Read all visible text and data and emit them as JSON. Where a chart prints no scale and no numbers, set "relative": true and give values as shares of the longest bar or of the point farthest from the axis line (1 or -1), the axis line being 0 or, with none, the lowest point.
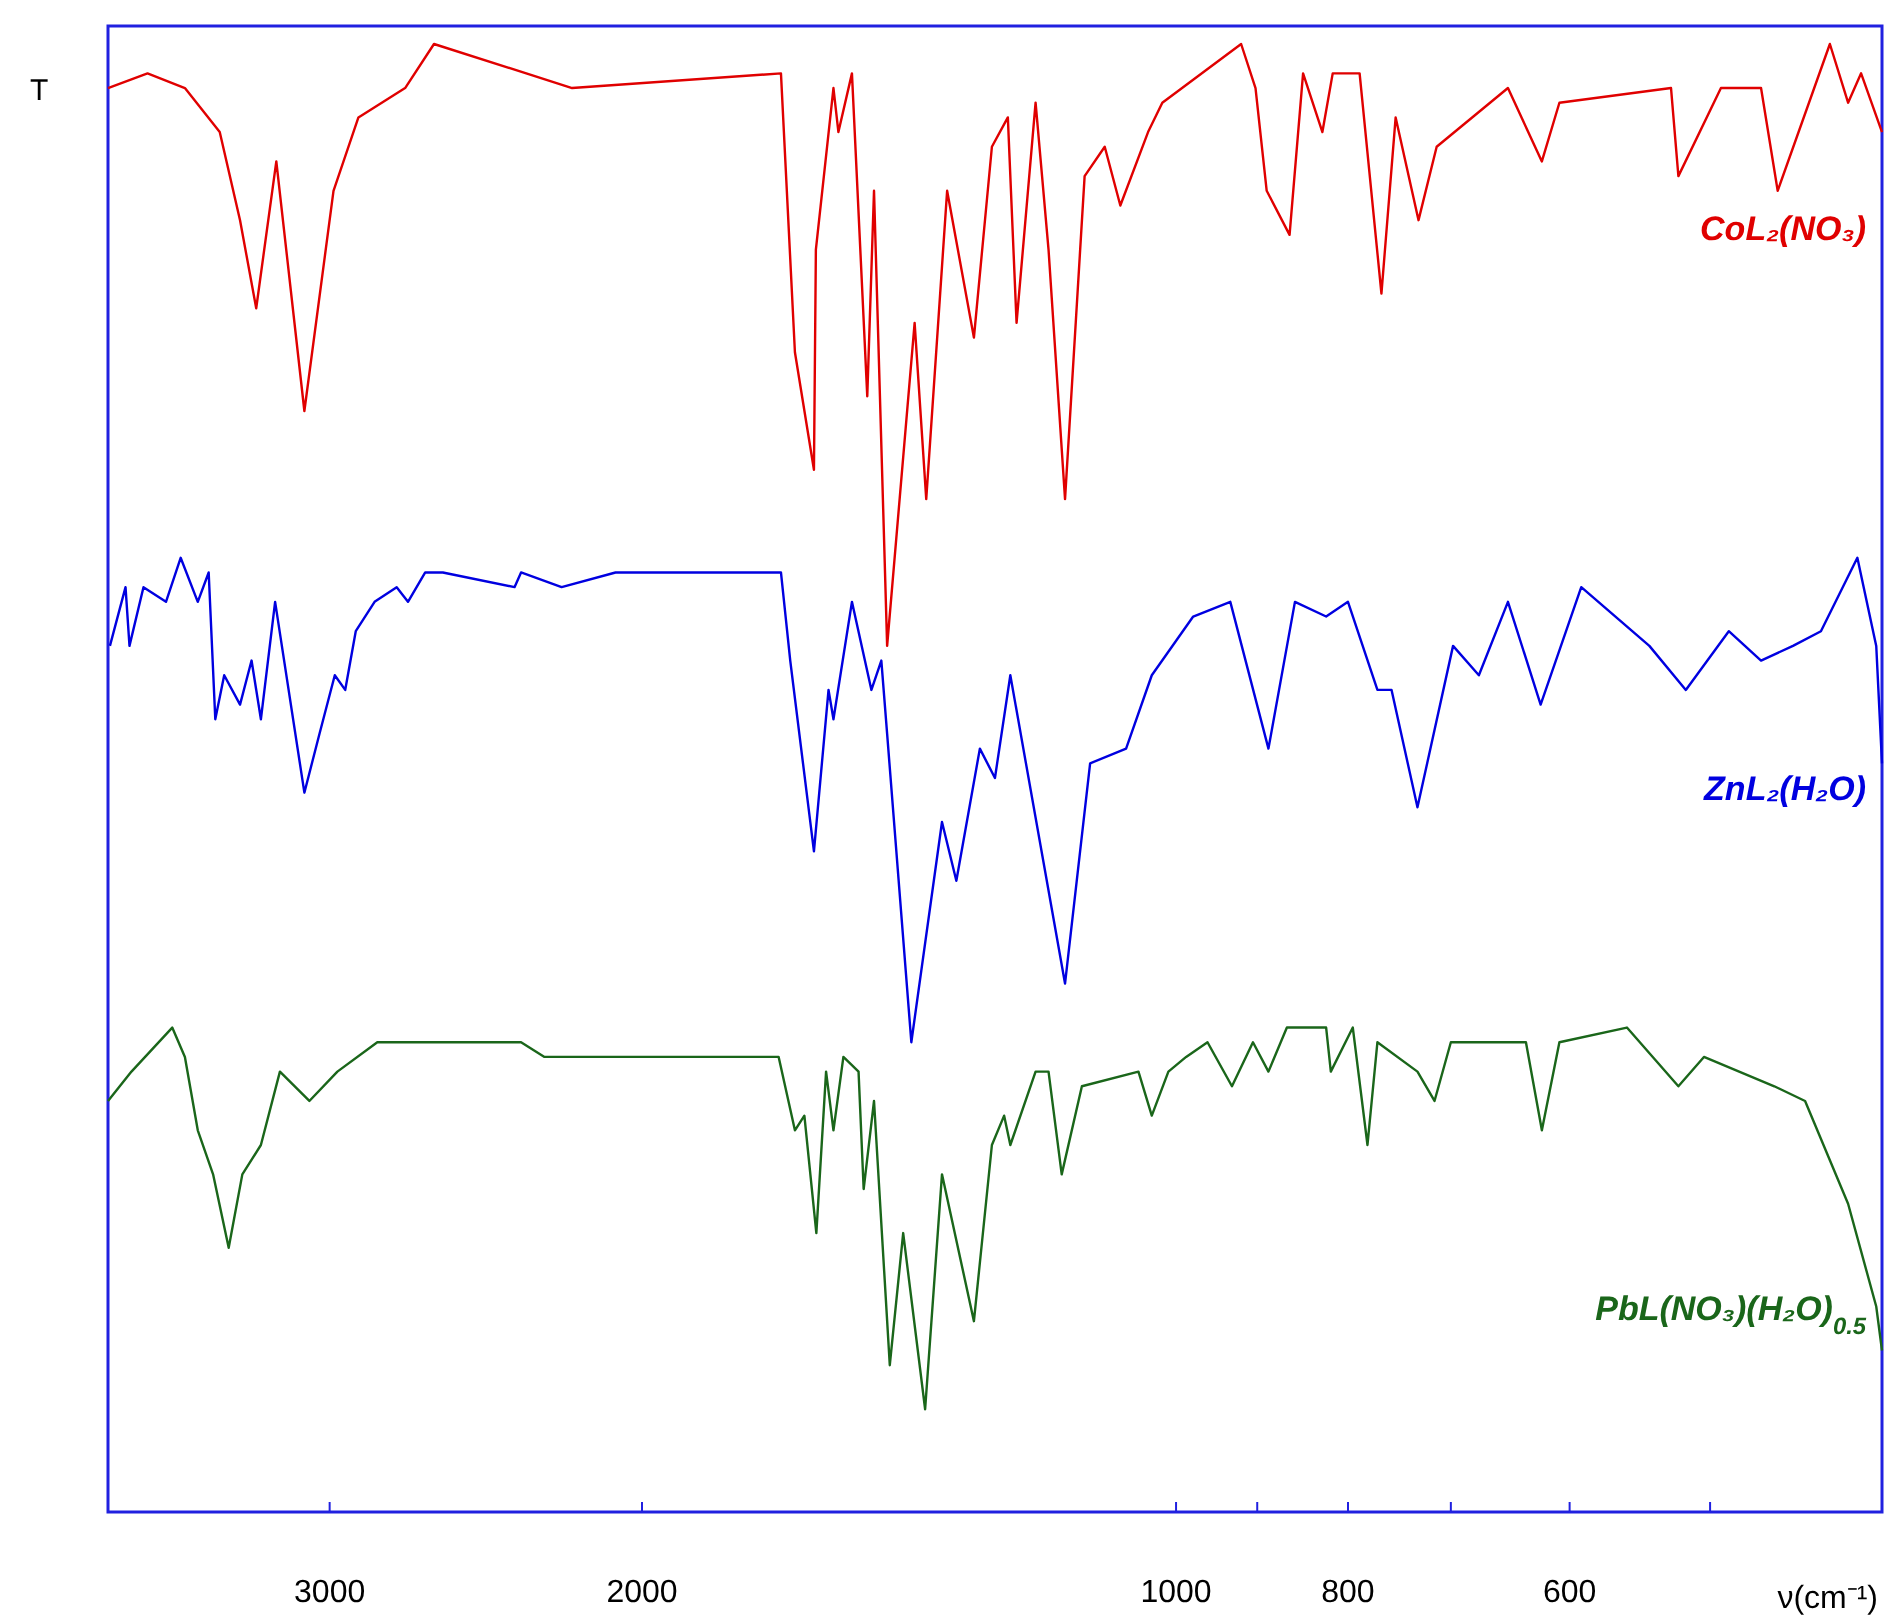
{
  "chart_data": {
    "type": "line",
    "relative": true,
    "log": "x",
    "xlabel": "ν(cm⁻¹)",
    "ylabel": "T",
    "xlim": [
      4000,
      400
    ],
    "xticks": [
      3000,
      2000,
      1000,
      {
        "value": 900,
        "label": null
      },
      800,
      {
        "value": 700,
        "label": null
      },
      600,
      {
        "value": 500,
        "label": null
      }
    ],
    "series": [
      {
        "name": "CoL₂(NO₃)",
        "color": "#e00000",
        "x": [
          4000,
          3800,
          3620,
          3460,
          3370,
          3300,
          3215,
          3100,
          2985,
          2890,
          2720,
          2620,
          2190,
          1670,
          1640,
          1600,
          1596,
          1560,
          1550,
          1523,
          1493,
          1480,
          1455,
          1404,
          1383,
          1346,
          1300,
          1270,
          1244,
          1230,
          1200,
          1180,
          1155,
          1126,
          1097,
          1075,
          1037,
          1018,
          919,
          902,
          889,
          863,
          848,
          827,
          816,
          788,
          766,
          752,
          730,
          713,
          650,
          622,
          608,
          526,
          521,
          493,
          468,
          458,
          428,
          418,
          411,
          400
        ],
        "values": [
          0.97,
          0.98,
          0.97,
          0.94,
          0.88,
          0.82,
          0.92,
          0.75,
          0.9,
          0.95,
          0.97,
          1,
          0.97,
          0.98,
          0.79,
          0.71,
          0.86,
          0.97,
          0.94,
          0.98,
          0.76,
          0.9,
          0.59,
          0.81,
          0.69,
          0.9,
          0.8,
          0.93,
          0.95,
          0.81,
          0.96,
          0.86,
          0.69,
          0.91,
          0.93,
          0.89,
          0.94,
          0.96,
          1,
          0.97,
          0.9,
          0.87,
          0.98,
          0.94,
          0.98,
          0.98,
          0.83,
          0.95,
          0.88,
          0.93,
          0.97,
          0.92,
          0.96,
          0.97,
          0.91,
          0.97,
          0.97,
          0.9,
          1,
          0.96,
          0.98,
          0.94
        ]
      },
      {
        "name": "ZnL₂(H₂O)",
        "color": "#0000e0",
        "x": [
          3990,
          3910,
          3890,
          3820,
          3710,
          3640,
          3560,
          3510,
          3480,
          3440,
          3370,
          3320,
          3280,
          3220,
          3100,
          3040,
          2980,
          2940,
          2900,
          2830,
          2750,
          2710,
          2650,
          2590,
          2360,
          2340,
          2220,
          2070,
          1770,
          1670,
          1650,
          1600,
          1570,
          1560,
          1523,
          1485,
          1466,
          1455,
          1410,
          1355,
          1330,
          1290,
          1265,
          1240,
          1155,
          1118,
          1067,
          1032,
          978,
          932,
          887,
          857,
          823,
          800,
          770,
          756,
          731,
          698,
          675,
          650,
          623,
          591,
          541,
          516,
          488,
          468,
          449,
          433,
          413,
          403,
          400
        ],
        "values": [
          0.59,
          0.63,
          0.59,
          0.63,
          0.62,
          0.65,
          0.62,
          0.64,
          0.54,
          0.57,
          0.55,
          0.58,
          0.54,
          0.62,
          0.49,
          0.53,
          0.57,
          0.56,
          0.6,
          0.62,
          0.63,
          0.62,
          0.64,
          0.64,
          0.63,
          0.64,
          0.63,
          0.64,
          0.64,
          0.64,
          0.58,
          0.45,
          0.56,
          0.54,
          0.62,
          0.56,
          0.58,
          0.53,
          0.32,
          0.47,
          0.43,
          0.52,
          0.5,
          0.57,
          0.36,
          0.51,
          0.52,
          0.57,
          0.61,
          0.62,
          0.52,
          0.62,
          0.61,
          0.62,
          0.56,
          0.56,
          0.48,
          0.59,
          0.57,
          0.62,
          0.55,
          0.63,
          0.59,
          0.56,
          0.6,
          0.58,
          0.59,
          0.6,
          0.65,
          0.59,
          0.51
        ]
      },
      {
        "name": "PbL(NO₃)(H₂O)$_{0.5}$",
        "color": "#1a661a",
        "x": [
          4000,
          3880,
          3680,
          3620,
          3560,
          3490,
          3420,
          3360,
          3280,
          3200,
          3080,
          2970,
          2820,
          2340,
          2270,
          1750,
          1675,
          1640,
          1620,
          1595,
          1575,
          1560,
          1540,
          1510,
          1500,
          1480,
          1450,
          1425,
          1385,
          1355,
          1300,
          1270,
          1250,
          1240,
          1200,
          1180,
          1160,
          1130,
          1050,
          1032,
          1010,
          987,
          960,
          930,
          905,
          887,
          866,
          823,
          818,
          795,
          780,
          770,
          731,
          715,
          700,
          635,
          622,
          608,
          557,
          521,
          504,
          460,
          442,
          418,
          403,
          400
        ],
        "values": [
          0.28,
          0.3,
          0.33,
          0.31,
          0.26,
          0.23,
          0.18,
          0.23,
          0.25,
          0.3,
          0.28,
          0.3,
          0.32,
          0.32,
          0.31,
          0.31,
          0.31,
          0.26,
          0.27,
          0.19,
          0.3,
          0.26,
          0.31,
          0.3,
          0.22,
          0.28,
          0.1,
          0.19,
          0.07,
          0.23,
          0.13,
          0.25,
          0.27,
          0.25,
          0.3,
          0.3,
          0.23,
          0.29,
          0.3,
          0.27,
          0.3,
          0.31,
          0.32,
          0.29,
          0.32,
          0.3,
          0.33,
          0.33,
          0.3,
          0.33,
          0.25,
          0.32,
          0.3,
          0.28,
          0.32,
          0.32,
          0.26,
          0.32,
          0.33,
          0.29,
          0.31,
          0.29,
          0.28,
          0.21,
          0.14,
          0.11
        ]
      }
    ]
  }
}
